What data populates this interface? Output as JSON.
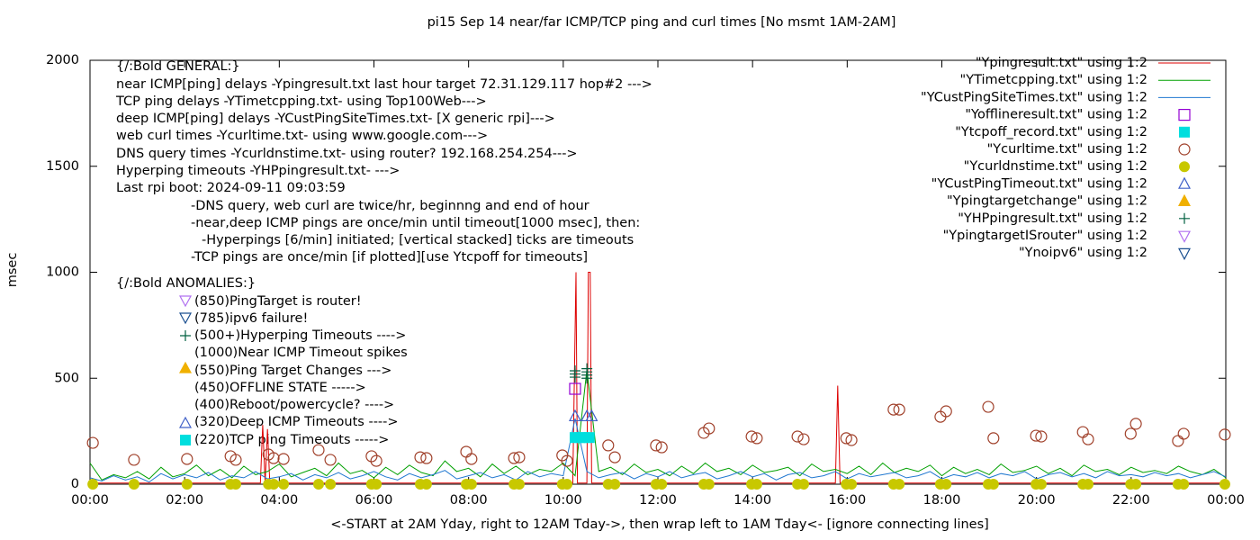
{
  "chart_data": {
    "type": "line",
    "title": "pi15 Sep 14  near/far ICMP/TCP ping and curl times [No msmt 1AM-2AM]",
    "xlabel": "<-START at 2AM Yday, right to 12AM Tday->, then wrap left to 1AM Tday<- [ignore connecting lines]",
    "ylabel": "msec",
    "xlim": [
      0,
      24
    ],
    "ylim": [
      0,
      2000
    ],
    "xticks": [
      {
        "value": 0,
        "label": "00:00"
      },
      {
        "value": 2,
        "label": "02:00"
      },
      {
        "value": 4,
        "label": "04:00"
      },
      {
        "value": 6,
        "label": "06:00"
      },
      {
        "value": 8,
        "label": "08:00"
      },
      {
        "value": 10,
        "label": "10:00"
      },
      {
        "value": 12,
        "label": "12:00"
      },
      {
        "value": 14,
        "label": "14:00"
      },
      {
        "value": 16,
        "label": "16:00"
      },
      {
        "value": 18,
        "label": "18:00"
      },
      {
        "value": 20,
        "label": "20:00"
      },
      {
        "value": 22,
        "label": "22:00"
      },
      {
        "value": 24,
        "label": "00:00"
      }
    ],
    "yticks": [
      0,
      500,
      1000,
      1500,
      2000
    ],
    "legend": "top-right",
    "annotations": [
      "{/:Bold GENERAL:}",
      "near ICMP[ping] delays -Ypingresult.txt last hour target 72.31.129.117 hop#2 --->",
      "TCP ping delays -YTimetcpping.txt- using Top100Web--->",
      "deep ICMP[ping] delays -YCustPingSiteTimes.txt- [X generic rpi]--->",
      "web curl times -Ycurltime.txt- using www.google.com--->",
      "DNS query times -Ycurldnstime.txt- using router? 192.168.254.254--->",
      "Hyperping timeouts -YHPpingresult.txt- --->",
      "Last rpi boot: 2024-09-11 09:03:59",
      "-DNS query, web curl are twice/hr, beginnng and end of hour",
      "-near,deep ICMP pings are once/min until timeout[1000 msec], then:",
      "-Hyperpings [6/min] initiated; [vertical stacked] ticks are timeouts",
      "-TCP pings are once/min [if plotted][use Ytcpoff for timeouts]",
      "{/:Bold ANOMALIES:}",
      "(850)PingTarget is router!",
      "(785)ipv6 failure!",
      "(500+)Hyperping Timeouts ---->",
      "(1000)Near ICMP Timeout spikes",
      "(550)Ping Target Changes --->",
      "(450)OFFLINE STATE ----->",
      "(400)Reboot/powercycle? ---->",
      "(320)Deep ICMP Timeouts ---->",
      "(220)TCP ping Timeouts ----->"
    ],
    "series": [
      {
        "name": "\"Ypingresult.txt\" using 1:2",
        "color": "#dd0000",
        "style": "line",
        "x": [
          0,
          3.6,
          3.65,
          3.7,
          3.75,
          3.8,
          10.2,
          10.27,
          10.3,
          10.5,
          10.53,
          10.57,
          10.6,
          15.75,
          15.8,
          15.85,
          24
        ],
        "values": [
          5,
          5,
          280,
          5,
          260,
          5,
          5,
          1000,
          5,
          5,
          1000,
          1000,
          5,
          5,
          465,
          5,
          5
        ]
      },
      {
        "name": "\"YTimetcpping.txt\" using 1:2",
        "color": "#00a000",
        "style": "line",
        "x": [
          0,
          0.25,
          0.5,
          0.75,
          1,
          1.25,
          1.5,
          1.75,
          2,
          2.25,
          2.5,
          2.75,
          3,
          3.25,
          3.5,
          3.75,
          4,
          4.25,
          4.5,
          4.75,
          5,
          5.25,
          5.5,
          5.75,
          6,
          6.25,
          6.5,
          6.75,
          7,
          7.25,
          7.5,
          7.75,
          8,
          8.25,
          8.5,
          8.75,
          9,
          9.25,
          9.5,
          9.75,
          10,
          10.25,
          10.5,
          10.75,
          11,
          11.25,
          11.5,
          11.75,
          12,
          12.25,
          12.5,
          12.75,
          13,
          13.25,
          13.5,
          13.75,
          14,
          14.25,
          14.5,
          14.75,
          15,
          15.25,
          15.5,
          15.75,
          16,
          16.25,
          16.5,
          16.75,
          17,
          17.25,
          17.5,
          17.75,
          18,
          18.25,
          18.5,
          18.75,
          19,
          19.25,
          19.5,
          19.75,
          20,
          20.25,
          20.5,
          20.75,
          21,
          21.25,
          21.5,
          21.75,
          22,
          22.25,
          22.5,
          22.75,
          23,
          23.25,
          23.5,
          23.75,
          24
        ],
        "values": [
          100,
          20,
          45,
          30,
          60,
          25,
          80,
          35,
          50,
          90,
          40,
          70,
          30,
          85,
          45,
          60,
          95,
          35,
          55,
          75,
          40,
          100,
          50,
          65,
          30,
          80,
          45,
          90,
          55,
          40,
          110,
          60,
          75,
          35,
          95,
          50,
          85,
          45,
          70,
          60,
          100,
          40,
          540,
          60,
          80,
          45,
          95,
          55,
          70,
          40,
          85,
          50,
          100,
          60,
          75,
          45,
          90,
          55,
          65,
          80,
          40,
          95,
          60,
          70,
          50,
          85,
          45,
          100,
          55,
          75,
          60,
          90,
          40,
          80,
          50,
          70,
          45,
          95,
          55,
          65,
          85,
          50,
          75,
          40,
          90,
          60,
          70,
          45,
          80,
          55,
          65,
          50,
          85,
          60,
          45,
          70,
          30
        ]
      },
      {
        "name": "\"YCustPingSiteTimes.txt\" using 1:2",
        "color": "#1f77d0",
        "style": "line",
        "x": [
          0,
          0.25,
          0.5,
          0.75,
          1,
          1.25,
          1.5,
          1.75,
          2,
          2.25,
          2.5,
          2.75,
          3,
          3.25,
          3.5,
          3.75,
          4,
          4.25,
          4.5,
          4.75,
          5,
          5.25,
          5.5,
          5.75,
          6,
          6.25,
          6.5,
          6.75,
          7,
          7.25,
          7.5,
          7.75,
          8,
          8.25,
          8.5,
          8.75,
          9,
          9.25,
          9.5,
          9.75,
          10,
          10.25,
          10.5,
          10.75,
          11,
          11.25,
          11.5,
          11.75,
          12,
          12.25,
          12.5,
          12.75,
          13,
          13.25,
          13.5,
          13.75,
          14,
          14.25,
          14.5,
          14.75,
          15,
          15.25,
          15.5,
          15.75,
          16,
          16.25,
          16.5,
          16.75,
          17,
          17.25,
          17.5,
          17.75,
          18,
          18.25,
          18.5,
          18.75,
          19,
          19.25,
          19.5,
          19.75,
          20,
          20.25,
          20.5,
          20.75,
          21,
          21.25,
          21.5,
          21.75,
          22,
          22.25,
          22.5,
          22.75,
          23,
          23.25,
          23.5,
          23.75,
          24
        ],
        "values": [
          30,
          15,
          40,
          20,
          35,
          10,
          50,
          25,
          45,
          30,
          55,
          20,
          40,
          30,
          60,
          25,
          35,
          50,
          20,
          45,
          30,
          55,
          25,
          40,
          60,
          35,
          20,
          50,
          30,
          45,
          65,
          25,
          40,
          55,
          30,
          45,
          20,
          60,
          35,
          50,
          40,
          310,
          60,
          30,
          45,
          55,
          25,
          50,
          35,
          60,
          30,
          45,
          55,
          25,
          40,
          60,
          35,
          50,
          20,
          45,
          55,
          30,
          40,
          60,
          25,
          50,
          35,
          45,
          55,
          30,
          40,
          60,
          25,
          45,
          35,
          55,
          30,
          50,
          40,
          60,
          25,
          45,
          55,
          35,
          50,
          30,
          60,
          40,
          45,
          35,
          55,
          40,
          50,
          30,
          45,
          60,
          35
        ]
      },
      {
        "name": "\"Yofflineresult.txt\" using 1:2",
        "color": "#9400d3",
        "style": "square-open",
        "x": [
          10.25
        ],
        "values": [
          450
        ]
      },
      {
        "name": "\"Ytcpoff_record.txt\" using 1:2",
        "color": "#00dede",
        "style": "square",
        "x": [
          10.25,
          10.35,
          10.45,
          10.55
        ],
        "values": [
          220,
          220,
          220,
          220
        ]
      },
      {
        "name": "\"Ycurltime.txt\" using 1:2",
        "color": "#a0402a",
        "style": "circle-open",
        "x": [
          0.06,
          0.93,
          2.05,
          2.97,
          3.08,
          3.77,
          3.88,
          4.09,
          4.83,
          5.08,
          5.95,
          6.05,
          6.98,
          7.11,
          7.95,
          8.06,
          8.96,
          9.07,
          9.98,
          10.08,
          10.95,
          11.09,
          11.96,
          12.08,
          12.97,
          13.08,
          13.98,
          14.09,
          14.95,
          15.08,
          15.98,
          16.09,
          16.98,
          17.1,
          17.97,
          18.09,
          18.98,
          19.09,
          19.99,
          20.1,
          20.98,
          21.09,
          21.99,
          22.1,
          22.99,
          23.11,
          23.98
        ],
        "values": [
          195,
          115,
          119,
          132,
          115,
          140,
          123,
          119,
          161,
          115,
          132,
          110,
          127,
          123,
          153,
          119,
          123,
          127,
          136,
          110,
          183,
          127,
          183,
          174,
          242,
          263,
          225,
          217,
          225,
          212,
          217,
          208,
          352,
          352,
          318,
          344,
          365,
          217,
          229,
          225,
          246,
          212,
          238,
          285,
          204,
          238,
          234
        ]
      },
      {
        "name": "\"Ycurldnstime.txt\" using 1:2",
        "color": "#c8c800",
        "style": "circle",
        "x": [
          0.06,
          0.93,
          2.05,
          2.97,
          3.08,
          3.77,
          3.88,
          4.09,
          4.83,
          5.08,
          5.95,
          6.05,
          6.98,
          7.11,
          7.95,
          8.06,
          8.96,
          9.07,
          9.98,
          10.08,
          10.95,
          11.09,
          11.96,
          12.08,
          12.97,
          13.08,
          13.98,
          14.09,
          14.95,
          15.08,
          15.98,
          16.09,
          16.98,
          17.1,
          17.97,
          18.09,
          18.98,
          19.09,
          19.99,
          20.1,
          20.98,
          21.09,
          21.99,
          22.1,
          22.99,
          23.11,
          23.98
        ],
        "values": [
          0,
          0,
          0,
          0,
          0,
          0,
          0,
          0,
          0,
          0,
          0,
          0,
          0,
          0,
          0,
          0,
          0,
          0,
          0,
          0,
          0,
          0,
          0,
          0,
          0,
          0,
          0,
          0,
          0,
          0,
          0,
          0,
          0,
          0,
          0,
          0,
          0,
          0,
          0,
          0,
          0,
          0,
          0,
          0,
          0,
          0,
          0
        ]
      },
      {
        "name": "\"YCustPingTimeout.txt\" using 1:2",
        "color": "#4060c8",
        "style": "triangle-open",
        "x": [
          10.25,
          10.5,
          10.6
        ],
        "values": [
          320,
          320,
          320
        ]
      },
      {
        "name": "\"Ypingtargetchange\" using 1:2",
        "color": "#f0b000",
        "style": "triangle",
        "x": [],
        "values": []
      },
      {
        "name": "\"YHPpingresult.txt\" using 1:2",
        "color": "#006040",
        "style": "plus",
        "x": [
          10.25,
          10.25,
          10.25,
          10.5,
          10.5,
          10.5,
          10.5
        ],
        "values": [
          505,
          520,
          535,
          500,
          515,
          530,
          545
        ]
      },
      {
        "name": "\"YpingtargetISrouter\" using 1:2",
        "color": "#b070f0",
        "style": "triangle-down-open",
        "x": [],
        "values": []
      },
      {
        "name": "\"Ynoipv6\" using 1:2",
        "color": "#1a4f90",
        "style": "triangle-down-open",
        "x": [],
        "values": []
      }
    ]
  }
}
